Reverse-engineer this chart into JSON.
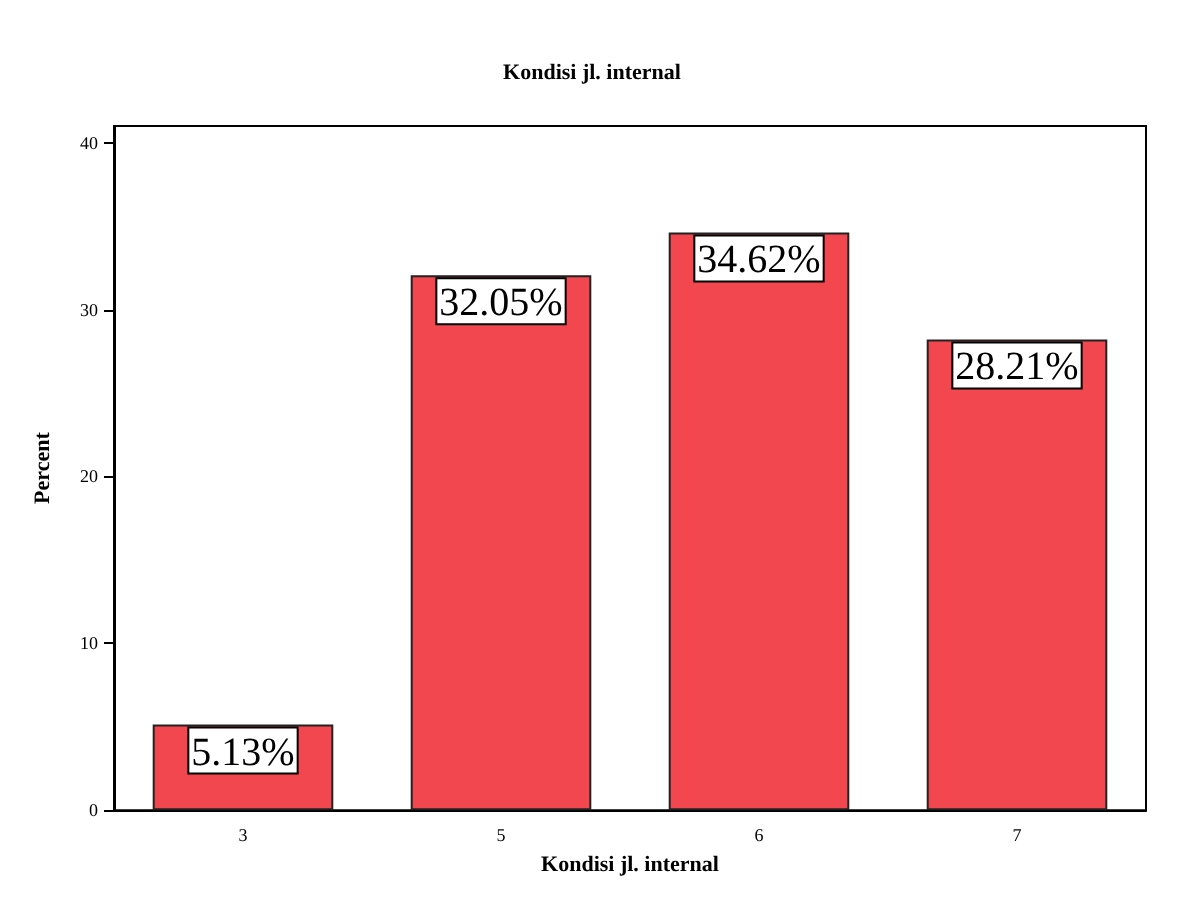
{
  "chart_data": {
    "type": "bar",
    "title": "Kondisi jl. internal",
    "xlabel": "Kondisi jl. internal",
    "ylabel": "Percent",
    "categories": [
      "3",
      "5",
      "6",
      "7"
    ],
    "values": [
      5.13,
      32.05,
      34.62,
      28.21
    ],
    "value_labels": [
      "5.13%",
      "32.05%",
      "34.62%",
      "28.21%"
    ],
    "color": "#f2474f",
    "ylim": [
      0,
      41
    ],
    "yticks": [
      0,
      10,
      20,
      30,
      40
    ],
    "grid": false
  }
}
